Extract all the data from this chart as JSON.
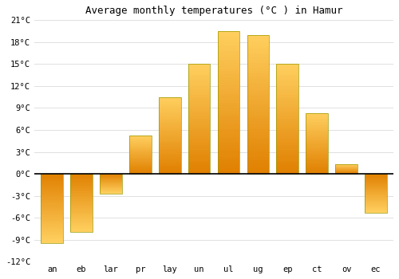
{
  "title": "Average monthly temperatures (°C ) in Hamur",
  "month_labels": [
    "an",
    "eb",
    "lar",
    "pr",
    "lay",
    "un",
    "ul",
    "ug",
    "ep",
    "ct",
    "ov",
    "ec"
  ],
  "values": [
    -9.5,
    -8.0,
    -2.7,
    5.2,
    10.5,
    15.0,
    19.5,
    19.0,
    15.0,
    8.3,
    1.3,
    -5.3
  ],
  "bar_color": "#FFA500",
  "bar_color_light": "#FFD060",
  "bar_color_dark": "#E08000",
  "bar_edge_color": "#888800",
  "ylim": [
    -12,
    21
  ],
  "yticks": [
    -12,
    -9,
    -6,
    -3,
    0,
    3,
    6,
    9,
    12,
    15,
    18,
    21
  ],
  "ytick_labels": [
    "-12°C",
    "-9°C",
    "-6°C",
    "-3°C",
    "0°C",
    "3°C",
    "6°C",
    "9°C",
    "12°C",
    "15°C",
    "18°C",
    "21°C"
  ],
  "background_color": "#FFFFFF",
  "grid_color": "#E0E0E0",
  "zero_line_color": "#000000",
  "title_fontsize": 9,
  "tick_fontsize": 7.5
}
